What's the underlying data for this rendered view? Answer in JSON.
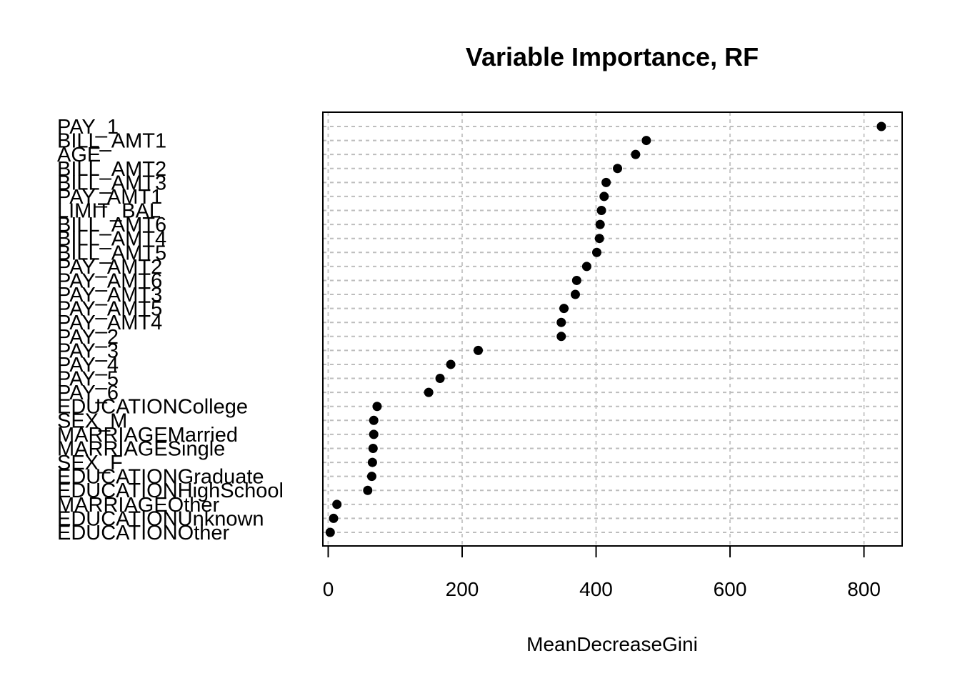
{
  "chart_data": {
    "type": "scatter",
    "title": "Variable Importance, RF",
    "xlabel": "MeanDecreaseGini",
    "ylabel": "",
    "xlim": [
      -8,
      857
    ],
    "xticks": [
      0,
      200,
      400,
      600,
      800
    ],
    "grid": true,
    "categories": [
      "PAY_1",
      "BILL_AMT1",
      "AGE",
      "BILL_AMT2",
      "BILL_AMT3",
      "PAY_AMT1",
      "LIMIT_BAL",
      "BILL_AMT6",
      "BILL_AMT4",
      "BILL_AMT5",
      "PAY_AMT2",
      "PAY_AMT6",
      "PAY_AMT3",
      "PAY_AMT5",
      "PAY_AMT4",
      "PAY_2",
      "PAY_3",
      "PAY_4",
      "PAY_5",
      "PAY_6",
      "EDUCATIONCollege",
      "SEX_M",
      "MARRIAGEMarried",
      "MARRIAGESingle",
      "SEX_F",
      "EDUCATIONGraduate",
      "EDUCATIONHighSchool",
      "MARRIAGEOther",
      "EDUCATIONUnknown",
      "EDUCATIONOther"
    ],
    "values": [
      826,
      475,
      459,
      432,
      415,
      412,
      408,
      406,
      405,
      401,
      386,
      371,
      369,
      352,
      348,
      348,
      224,
      183,
      167,
      150,
      73,
      68,
      68,
      67,
      66,
      65,
      59,
      13,
      8,
      3
    ]
  }
}
